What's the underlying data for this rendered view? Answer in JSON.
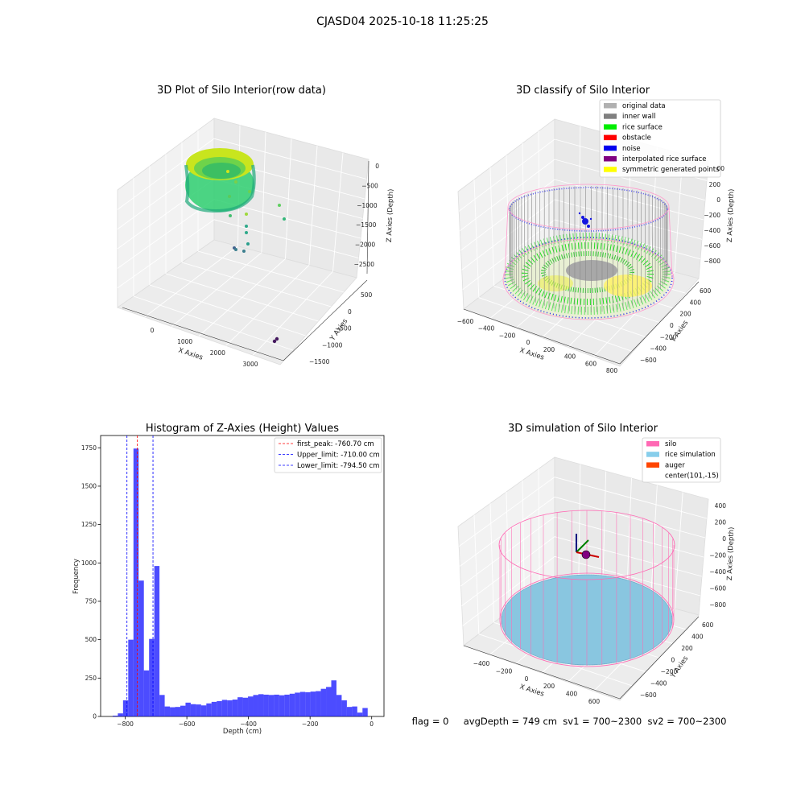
{
  "figure": {
    "suptitle": "CJASD04 2025-10-18 11:25:25",
    "status_text": "flag = 0     avgDepth = 749 cm  sv1 = 700~2300  sv2 = 700~2300"
  },
  "panels": {
    "raw": {
      "title": "3D Plot of Silo Interior(row data)",
      "xlabel": "X Axies",
      "ylabel": "Y Axies",
      "zlabel": "Z Axies (Depth)",
      "xticks": [
        "0",
        "1000",
        "2000",
        "3000"
      ],
      "yticks": [
        "500",
        "0",
        "−500",
        "−1000",
        "−1500"
      ],
      "zticks": [
        "0",
        "−500",
        "−1000",
        "−1500",
        "−2000",
        "−2500"
      ]
    },
    "classify": {
      "title": "3D classify of Silo Interior",
      "xlabel": "X Axies",
      "ylabel": "Y Axies",
      "zlabel": "Z Axies (Depth)",
      "xticks": [
        "−600",
        "−400",
        "−200",
        "0",
        "200",
        "400",
        "600",
        "800"
      ],
      "yticks": [
        "600",
        "400",
        "200",
        "0",
        "−200",
        "−400",
        "−600"
      ],
      "zticks": [
        "200",
        "0",
        "−200",
        "−400",
        "−600",
        "−800"
      ],
      "zticks_top_partial": "00",
      "legend": [
        {
          "label": "original data",
          "color": "#b0b0b0"
        },
        {
          "label": "inner wall",
          "color": "#808080"
        },
        {
          "label": "rice surface",
          "color": "#00ee00"
        },
        {
          "label": "obstacle",
          "color": "#ff0000"
        },
        {
          "label": "noise",
          "color": "#0000ee"
        },
        {
          "label": "interpolated rice surface",
          "color": "#800080"
        },
        {
          "label": "symmetric generated points",
          "color": "#ffff00"
        }
      ]
    },
    "simulation": {
      "title": "3D simulation of Silo Interior",
      "xlabel": "X Axies",
      "ylabel": "Y Axies",
      "zlabel": "Z Axies (Depth)",
      "xticks": [
        "−400",
        "−200",
        "0",
        "200",
        "400",
        "600"
      ],
      "yticks": [
        "600",
        "400",
        "200",
        "0",
        "−200",
        "−400",
        "−600"
      ],
      "zticks": [
        "400",
        "200",
        "0",
        "−200",
        "−400",
        "−600",
        "−800"
      ],
      "legend": [
        {
          "label": "silo",
          "color": "#ff69b4"
        },
        {
          "label": "rice simulation",
          "color": "#87ceeb"
        },
        {
          "label": "auger",
          "color": "#ff4500"
        },
        {
          "label": "center(101,-15)",
          "color": ""
        }
      ]
    }
  },
  "chart_data": {
    "type": "bar",
    "title": "Histogram of Z-Axies (Height) Values",
    "xlabel": "Depth (cm)",
    "ylabel": "Frequency",
    "xlim": [
      -880,
      40
    ],
    "ylim": [
      0,
      1830
    ],
    "xticks": [
      -800,
      -600,
      -400,
      -200,
      0
    ],
    "xtick_labels": [
      "−800",
      "−600",
      "−400",
      "−200",
      "0"
    ],
    "yticks": [
      0,
      250,
      500,
      750,
      1000,
      1250,
      1500,
      1750
    ],
    "bar_color": "#0000ff",
    "bin_start": -841,
    "bin_width": 16.9,
    "values": [
      5,
      20,
      105,
      500,
      1745,
      885,
      300,
      505,
      980,
      140,
      65,
      60,
      62,
      70,
      90,
      80,
      78,
      72,
      85,
      95,
      100,
      108,
      105,
      110,
      125,
      122,
      130,
      140,
      145,
      142,
      140,
      142,
      138,
      142,
      148,
      155,
      160,
      158,
      162,
      165,
      180,
      192,
      235,
      140,
      105,
      62,
      65,
      25,
      55
    ],
    "lines": [
      {
        "label": "first_peak: -760.70 cm",
        "x": -760.7,
        "color": "#ff0000"
      },
      {
        "label": "Upper_limit: -710.00 cm",
        "x": -710.0,
        "color": "#0000ff"
      },
      {
        "label": "Lower_limit: -794.50 cm",
        "x": -794.5,
        "color": "#0000ff"
      }
    ]
  }
}
